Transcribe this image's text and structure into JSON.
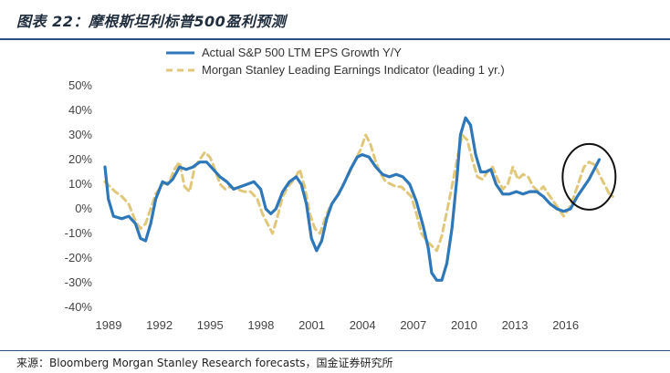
{
  "header": {
    "title": "图表 22：摩根斯坦利标普500盈利预测"
  },
  "footer": {
    "source": "来源：Bloomberg Morgan Stanley Research forecasts，国金证券研究所"
  },
  "chart_data": {
    "type": "line",
    "grid": false,
    "legend_position": "top",
    "ylim": [
      -0.4,
      0.5
    ],
    "y_ticks": [
      0.5,
      0.4,
      0.3,
      0.2,
      0.1,
      0.0,
      -0.1,
      -0.2,
      -0.3,
      -0.4
    ],
    "y_tick_labels": [
      "50%",
      "40%",
      "30%",
      "20%",
      "10%",
      "0%",
      "-10%",
      "-20%",
      "-30%",
      "-40%"
    ],
    "xlim": [
      1989,
      2019.9
    ],
    "x_ticks": [
      1989,
      1992,
      1995,
      1998,
      2001,
      2004,
      2007,
      2010,
      2013,
      2016
    ],
    "x_tick_labels": [
      "1989",
      "1992",
      "1995",
      "1998",
      "2001",
      "2004",
      "2007",
      "2010",
      "2013",
      "2016"
    ],
    "annotation": {
      "type": "circle",
      "x": 2017.6,
      "y": 0.13
    },
    "series": [
      {
        "name": "Actual S&P 500 LTM EPS Growth Y/Y",
        "color": "#2e77b8",
        "style": "solid",
        "points": [
          [
            1989.0,
            0.17
          ],
          [
            1989.2,
            0.04
          ],
          [
            1989.5,
            -0.03
          ],
          [
            1990.0,
            -0.04
          ],
          [
            1990.4,
            -0.03
          ],
          [
            1990.8,
            -0.06
          ],
          [
            1991.1,
            -0.12
          ],
          [
            1991.4,
            -0.13
          ],
          [
            1991.7,
            -0.06
          ],
          [
            1992.0,
            0.04
          ],
          [
            1992.4,
            0.11
          ],
          [
            1992.7,
            0.1
          ],
          [
            1993.0,
            0.12
          ],
          [
            1993.4,
            0.17
          ],
          [
            1993.8,
            0.16
          ],
          [
            1994.2,
            0.17
          ],
          [
            1994.6,
            0.19
          ],
          [
            1995.0,
            0.19
          ],
          [
            1995.4,
            0.16
          ],
          [
            1995.8,
            0.13
          ],
          [
            1996.2,
            0.11
          ],
          [
            1996.6,
            0.08
          ],
          [
            1997.0,
            0.09
          ],
          [
            1997.4,
            0.1
          ],
          [
            1997.8,
            0.11
          ],
          [
            1998.2,
            0.08
          ],
          [
            1998.5,
            0.0
          ],
          [
            1998.8,
            -0.02
          ],
          [
            1999.1,
            0.0
          ],
          [
            1999.5,
            0.07
          ],
          [
            1999.9,
            0.11
          ],
          [
            2000.3,
            0.13
          ],
          [
            2000.6,
            0.1
          ],
          [
            2000.9,
            0.02
          ],
          [
            2001.2,
            -0.12
          ],
          [
            2001.5,
            -0.17
          ],
          [
            2001.8,
            -0.13
          ],
          [
            2002.1,
            -0.04
          ],
          [
            2002.4,
            0.02
          ],
          [
            2002.8,
            0.06
          ],
          [
            2003.1,
            0.1
          ],
          [
            2003.5,
            0.16
          ],
          [
            2003.9,
            0.21
          ],
          [
            2004.2,
            0.22
          ],
          [
            2004.6,
            0.21
          ],
          [
            2005.0,
            0.17
          ],
          [
            2005.4,
            0.14
          ],
          [
            2005.8,
            0.13
          ],
          [
            2006.2,
            0.14
          ],
          [
            2006.6,
            0.13
          ],
          [
            2007.0,
            0.1
          ],
          [
            2007.4,
            0.03
          ],
          [
            2007.8,
            -0.07
          ],
          [
            2008.1,
            -0.16
          ],
          [
            2008.3,
            -0.26
          ],
          [
            2008.6,
            -0.29
          ],
          [
            2008.9,
            -0.29
          ],
          [
            2009.2,
            -0.22
          ],
          [
            2009.5,
            -0.08
          ],
          [
            2009.8,
            0.13
          ],
          [
            2010.0,
            0.3
          ],
          [
            2010.3,
            0.37
          ],
          [
            2010.6,
            0.34
          ],
          [
            2010.9,
            0.22
          ],
          [
            2011.2,
            0.15
          ],
          [
            2011.5,
            0.15
          ],
          [
            2011.8,
            0.16
          ],
          [
            2012.1,
            0.1
          ],
          [
            2012.5,
            0.06
          ],
          [
            2012.9,
            0.06
          ],
          [
            2013.3,
            0.07
          ],
          [
            2013.7,
            0.06
          ],
          [
            2014.1,
            0.07
          ],
          [
            2014.5,
            0.07
          ],
          [
            2014.9,
            0.05
          ],
          [
            2015.3,
            0.02
          ],
          [
            2015.7,
            0.0
          ],
          [
            2016.1,
            -0.01
          ],
          [
            2016.5,
            0.0
          ],
          [
            2016.9,
            0.05
          ],
          [
            2017.3,
            0.09
          ],
          [
            2017.6,
            0.12
          ],
          [
            2017.9,
            0.16
          ],
          [
            2018.2,
            0.2
          ]
        ]
      },
      {
        "name": "Morgan Stanley Leading Earnings Indicator (leading 1 yr.)",
        "color": "#e0c77a",
        "style": "dashed",
        "points": [
          [
            1989.0,
            0.11
          ],
          [
            1989.3,
            0.09
          ],
          [
            1989.6,
            0.07
          ],
          [
            1990.0,
            0.05
          ],
          [
            1990.4,
            0.02
          ],
          [
            1990.8,
            -0.05
          ],
          [
            1991.1,
            -0.08
          ],
          [
            1991.4,
            -0.06
          ],
          [
            1991.7,
            0.0
          ],
          [
            1992.0,
            0.06
          ],
          [
            1992.4,
            0.1
          ],
          [
            1992.8,
            0.11
          ],
          [
            1993.1,
            0.16
          ],
          [
            1993.4,
            0.19
          ],
          [
            1993.7,
            0.09
          ],
          [
            1994.0,
            0.07
          ],
          [
            1994.3,
            0.17
          ],
          [
            1994.6,
            0.2
          ],
          [
            1994.9,
            0.23
          ],
          [
            1995.2,
            0.21
          ],
          [
            1995.5,
            0.16
          ],
          [
            1995.8,
            0.1
          ],
          [
            1996.1,
            0.08
          ],
          [
            1996.4,
            0.09
          ],
          [
            1996.8,
            0.08
          ],
          [
            1997.2,
            0.07
          ],
          [
            1997.6,
            0.07
          ],
          [
            1998.0,
            0.04
          ],
          [
            1998.3,
            -0.02
          ],
          [
            1998.6,
            -0.06
          ],
          [
            1998.9,
            -0.1
          ],
          [
            1999.2,
            -0.03
          ],
          [
            1999.5,
            0.05
          ],
          [
            1999.8,
            0.09
          ],
          [
            2000.2,
            0.12
          ],
          [
            2000.5,
            0.16
          ],
          [
            2000.8,
            0.09
          ],
          [
            2001.1,
            -0.02
          ],
          [
            2001.4,
            -0.08
          ],
          [
            2001.7,
            -0.1
          ],
          [
            2002.0,
            -0.04
          ],
          [
            2002.3,
            0.01
          ],
          [
            2002.7,
            0.05
          ],
          [
            2003.0,
            0.09
          ],
          [
            2003.4,
            0.14
          ],
          [
            2003.8,
            0.2
          ],
          [
            2004.1,
            0.24
          ],
          [
            2004.4,
            0.3
          ],
          [
            2004.7,
            0.26
          ],
          [
            2005.0,
            0.19
          ],
          [
            2005.3,
            0.14
          ],
          [
            2005.6,
            0.11
          ],
          [
            2005.9,
            0.1
          ],
          [
            2006.2,
            0.09
          ],
          [
            2006.5,
            0.09
          ],
          [
            2006.8,
            0.07
          ],
          [
            2007.1,
            0.05
          ],
          [
            2007.4,
            -0.02
          ],
          [
            2007.7,
            -0.1
          ],
          [
            2008.0,
            -0.13
          ],
          [
            2008.3,
            -0.15
          ],
          [
            2008.6,
            -0.17
          ],
          [
            2008.9,
            -0.11
          ],
          [
            2009.2,
            -0.01
          ],
          [
            2009.5,
            0.09
          ],
          [
            2009.8,
            0.2
          ],
          [
            2010.1,
            0.3
          ],
          [
            2010.4,
            0.28
          ],
          [
            2010.7,
            0.2
          ],
          [
            2011.0,
            0.13
          ],
          [
            2011.3,
            0.12
          ],
          [
            2011.6,
            0.15
          ],
          [
            2011.9,
            0.17
          ],
          [
            2012.2,
            0.12
          ],
          [
            2012.5,
            0.08
          ],
          [
            2012.8,
            0.1
          ],
          [
            2013.1,
            0.17
          ],
          [
            2013.4,
            0.12
          ],
          [
            2013.7,
            0.14
          ],
          [
            2014.0,
            0.13
          ],
          [
            2014.3,
            0.09
          ],
          [
            2014.6,
            0.07
          ],
          [
            2014.9,
            0.09
          ],
          [
            2015.2,
            0.06
          ],
          [
            2015.5,
            0.03
          ],
          [
            2015.8,
            0.0
          ],
          [
            2016.1,
            -0.03
          ],
          [
            2016.4,
            0.0
          ],
          [
            2016.7,
            0.05
          ],
          [
            2017.0,
            0.11
          ],
          [
            2017.3,
            0.17
          ],
          [
            2017.6,
            0.19
          ],
          [
            2017.9,
            0.18
          ],
          [
            2018.2,
            0.14
          ],
          [
            2018.5,
            0.1
          ],
          [
            2018.8,
            0.06
          ],
          [
            2019.0,
            0.05
          ]
        ]
      }
    ]
  }
}
